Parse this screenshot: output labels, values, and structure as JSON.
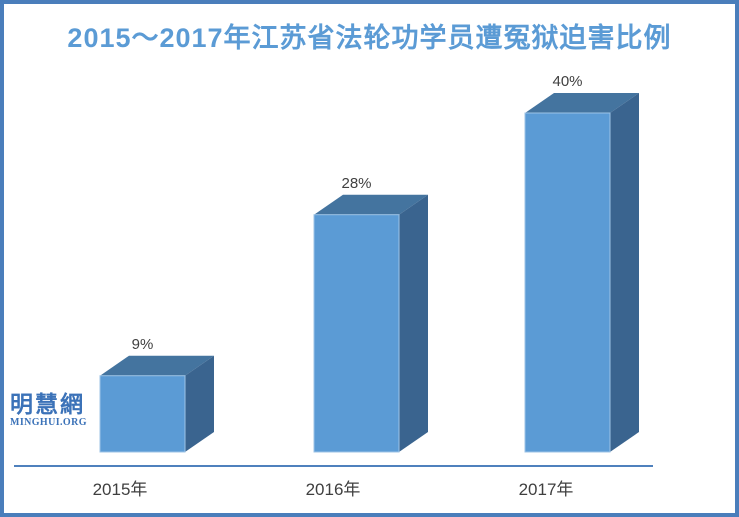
{
  "page": {
    "background": "#ffffff",
    "border_color": "#4a7ebb"
  },
  "title": {
    "text": "2015～2017年江苏省法轮功学员遭冤狱迫害比例",
    "color": "#5b9bd5"
  },
  "watermark": {
    "cn": "明慧網",
    "en": "MINGHUI.ORG",
    "color": "#3b72b8"
  },
  "chart_data": {
    "type": "bar",
    "style": "3d-column",
    "title": "2015～2017年江苏省法轮功学员遭冤狱迫害比例",
    "categories": [
      "2015年",
      "2016年",
      "2017年"
    ],
    "values": [
      9,
      28,
      40
    ],
    "data_labels": [
      "9%",
      "28%",
      "40%"
    ],
    "xlabel": "",
    "ylabel": "",
    "ylim": [
      0,
      40
    ],
    "grid": false,
    "legend": false,
    "colors": {
      "bar_front": "#5b9bd5",
      "bar_top": "#44749f",
      "bar_side": "#3a648f",
      "bar_edge": "#9dc3e6",
      "axis_line": "#4f81bd",
      "data_label": "#404040",
      "category_label": "#3f3f3f"
    }
  }
}
